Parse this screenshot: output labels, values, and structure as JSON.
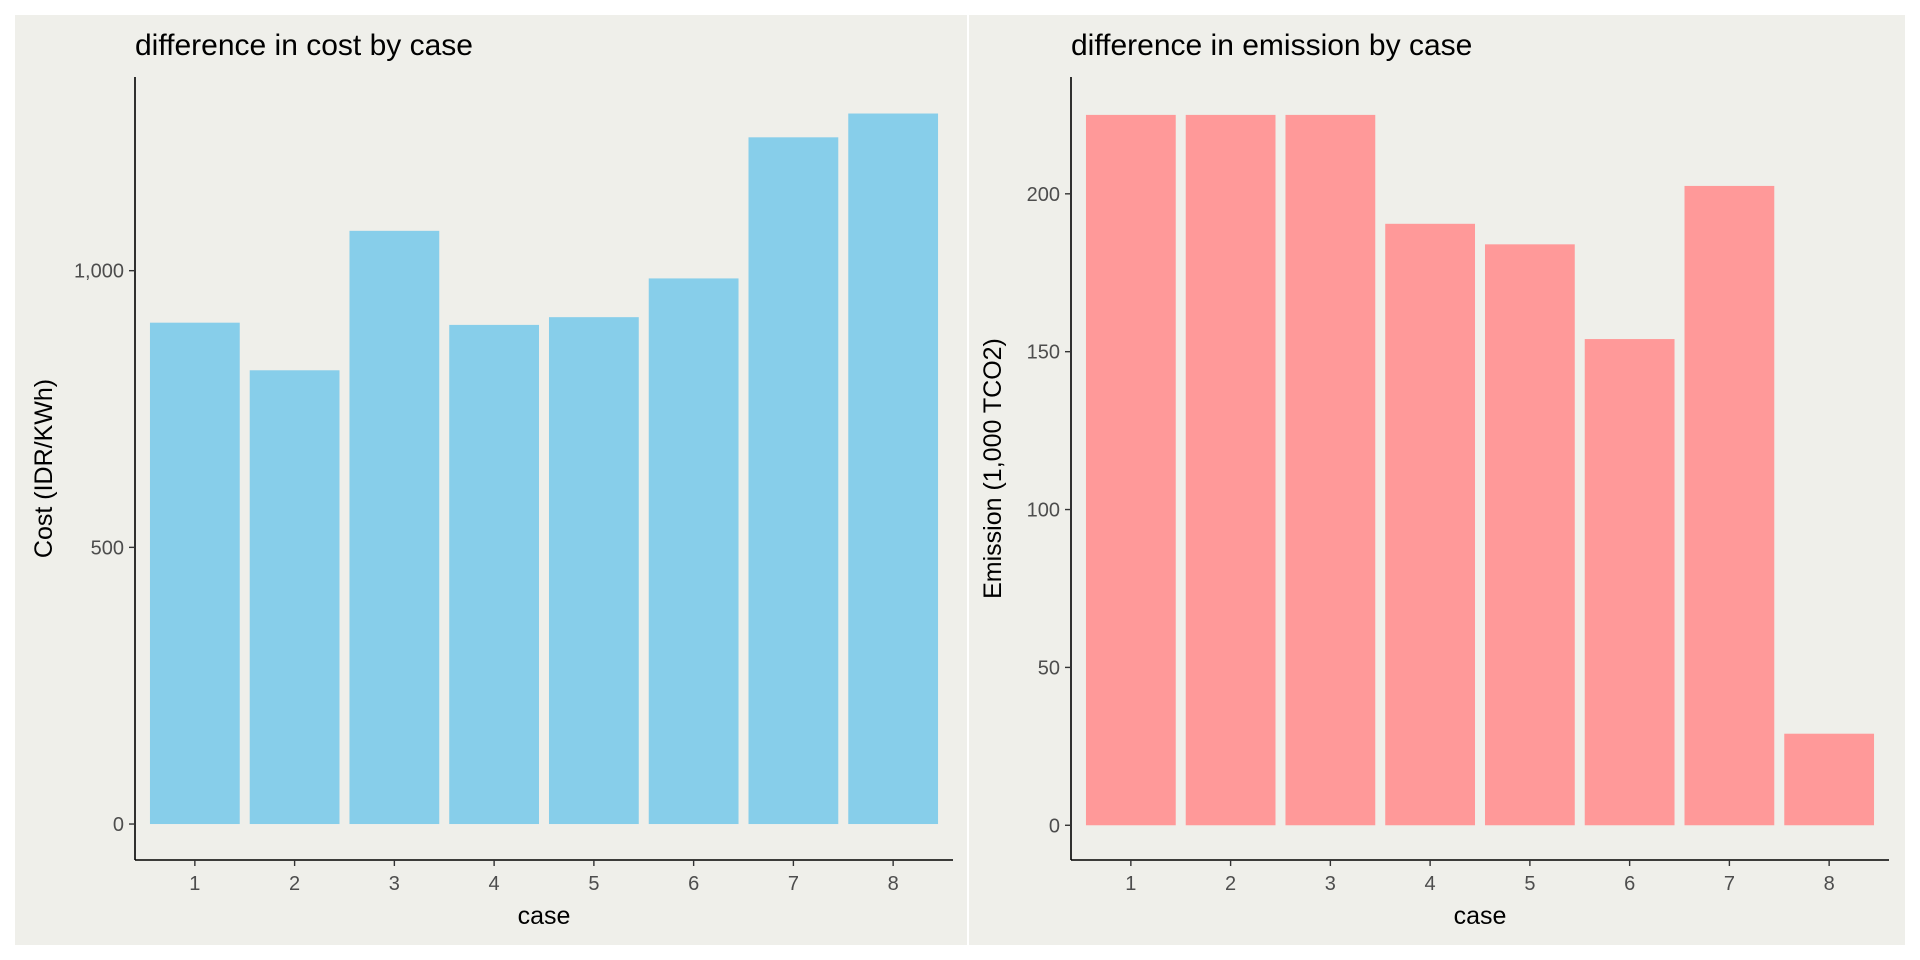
{
  "chart_data": [
    {
      "type": "bar",
      "title": "difference in cost by case",
      "xlabel": "case",
      "ylabel": "Cost (IDR/KWh)",
      "categories": [
        "1",
        "2",
        "3",
        "4",
        "5",
        "6",
        "7",
        "8"
      ],
      "values": [
        906,
        820,
        1072,
        902,
        916,
        986,
        1241,
        1284
      ],
      "ylim": [
        -65,
        1350
      ],
      "yticks": [
        0,
        500,
        1000
      ],
      "ytick_labels": [
        "0",
        "500",
        "1,000"
      ],
      "bar_color": "#87ceea",
      "grid": false
    },
    {
      "type": "bar",
      "title": "difference in emission by case",
      "xlabel": "case",
      "ylabel": "Emission (1,000 TCO2)",
      "categories": [
        "1",
        "2",
        "3",
        "4",
        "5",
        "6",
        "7",
        "8"
      ],
      "values": [
        225,
        225,
        225,
        190.5,
        184,
        154,
        202.5,
        29
      ],
      "ylim": [
        -11,
        237
      ],
      "yticks": [
        0,
        50,
        100,
        150,
        200
      ],
      "ytick_labels": [
        "0",
        "50",
        "100",
        "150",
        "200"
      ],
      "bar_color": "#ff9999",
      "grid": false
    }
  ],
  "colors": {
    "panel_background": "#efefea",
    "axis_line": "#000000",
    "tick_text": "#4d4d4d"
  }
}
